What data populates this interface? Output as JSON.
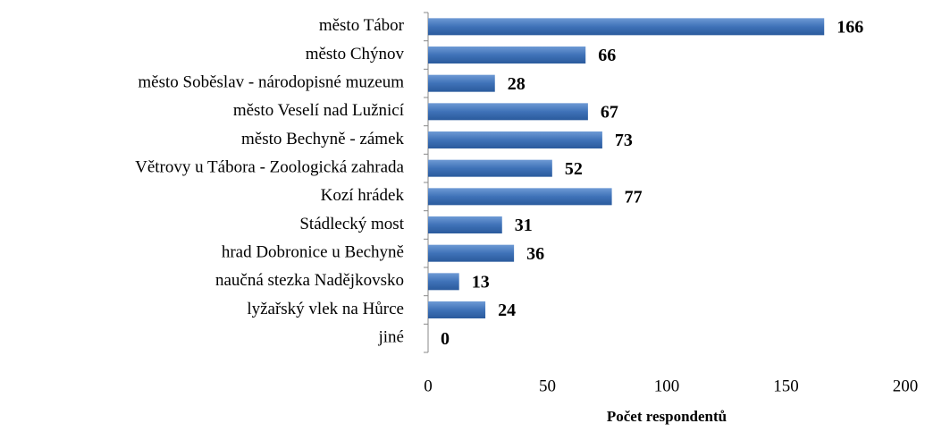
{
  "chart_data": {
    "type": "bar",
    "orientation": "horizontal",
    "categories": [
      "město Tábor",
      "město Chýnov",
      "město Soběslav - národopisné muzeum",
      "město Veselí nad Lužnicí ",
      "město Bechyně - zámek",
      "Větrovy u Tábora - Zoologická zahrada",
      "Kozí hrádek",
      "Stádlecký most",
      "hrad Dobronice u Bechyně",
      "naučná stezka Nadějkovsko",
      "lyžařský vlek na Hůrce",
      "jiné"
    ],
    "values": [
      166,
      66,
      28,
      67,
      73,
      52,
      77,
      31,
      36,
      13,
      24,
      0
    ],
    "color": "#4a7ebb",
    "xlim": [
      0,
      200
    ],
    "xticks": [
      0,
      50,
      100,
      150,
      200
    ],
    "xlabel": "Počet respondentů",
    "grid": false
  }
}
